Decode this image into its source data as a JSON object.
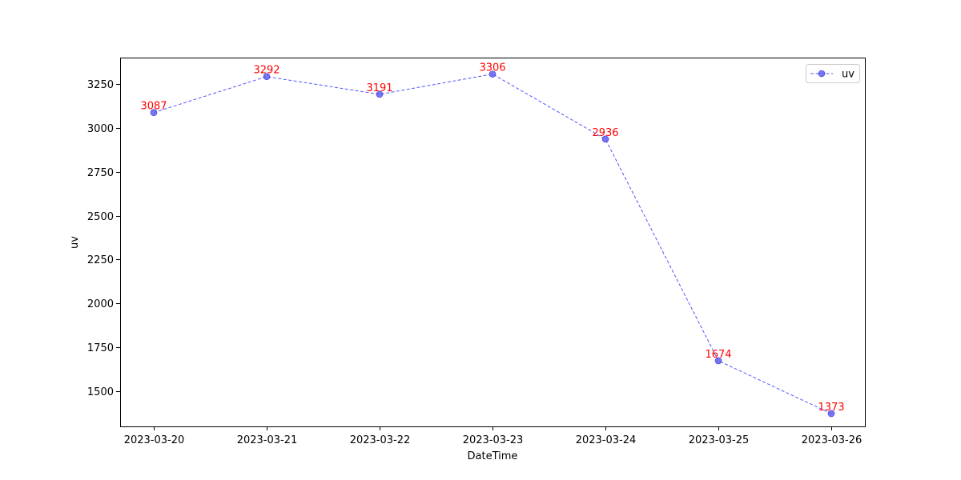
{
  "chart_data": {
    "type": "line",
    "x": [
      "2023-03-20",
      "2023-03-21",
      "2023-03-22",
      "2023-03-23",
      "2023-03-24",
      "2023-03-25",
      "2023-03-26"
    ],
    "series": [
      {
        "name": "uv",
        "values": [
          3087,
          3292,
          3191,
          3306,
          2936,
          1674,
          1373
        ]
      }
    ],
    "xlabel": "DateTime",
    "ylabel": "uv",
    "ylim": [
      1300,
      3400
    ],
    "yticks": [
      1500,
      1750,
      2000,
      2250,
      2500,
      2750,
      3000,
      3250
    ],
    "ytick_labels": [
      "1500",
      "1750",
      "2000",
      "2250",
      "2500",
      "2750",
      "3000",
      "3250"
    ],
    "data_labels": [
      "3087",
      "3292",
      "3191",
      "3306",
      "2936",
      "1674",
      "1373"
    ],
    "legend": {
      "position": "upper-right",
      "label": "uv"
    },
    "grid": false,
    "colors": {
      "line": "#5555ff",
      "marker": "#5f5ff0",
      "label": "#ff0000"
    }
  }
}
